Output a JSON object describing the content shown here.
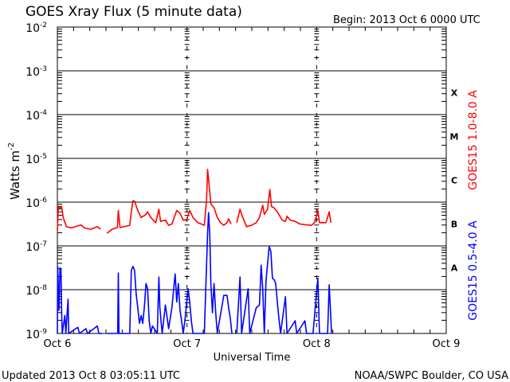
{
  "chart_data": {
    "type": "line",
    "title": "GOES Xray Flux (5 minute data)",
    "begin_label": "Begin:  2013 Oct 6 0000 UTC",
    "xlabel": "Universal Time",
    "ylabel": "Watts m",
    "ylabel_exp": "-2",
    "x_unit": "hours since 2013 Oct 6 0000 UTC",
    "xlim": [
      0,
      72
    ],
    "x_ticks": [
      {
        "h": 0,
        "label": "Oct 6"
      },
      {
        "h": 24,
        "label": "Oct 7"
      },
      {
        "h": 48,
        "label": "Oct 8"
      },
      {
        "h": 72,
        "label": "Oct 9"
      }
    ],
    "y_scale": "log",
    "ylim_exp": [
      -9,
      -2
    ],
    "y_ticks": [
      {
        "exp": -2,
        "base": "10",
        "sup": "-2"
      },
      {
        "exp": -3,
        "base": "10",
        "sup": "-3"
      },
      {
        "exp": -4,
        "base": "10",
        "sup": "-4"
      },
      {
        "exp": -5,
        "base": "10",
        "sup": "-5"
      },
      {
        "exp": -6,
        "base": "10",
        "sup": "-6"
      },
      {
        "exp": -7,
        "base": "10",
        "sup": "-7"
      },
      {
        "exp": -8,
        "base": "10",
        "sup": "-8"
      },
      {
        "exp": -9,
        "base": "10",
        "sup": "-9"
      }
    ],
    "flare_classes": [
      {
        "label": "X",
        "exp": -4
      },
      {
        "label": "M",
        "exp": -5
      },
      {
        "label": "C",
        "exp": -6
      },
      {
        "label": "B",
        "exp": -7
      },
      {
        "label": "A",
        "exp": -8
      }
    ],
    "series": [
      {
        "name": "GOES15 1.0-8.0 A",
        "color": "#ff0000",
        "points_hours_log10flux": [
          [
            0,
            -6.65
          ],
          [
            0.18,
            -6.1
          ],
          [
            0.48,
            -6.13
          ],
          [
            0.78,
            -6.1
          ],
          [
            1.08,
            -6.35
          ],
          [
            1.68,
            -6.56
          ],
          [
            2.58,
            -6.59
          ],
          [
            4.38,
            -6.52
          ],
          [
            4.98,
            -6.59
          ],
          [
            6.19,
            -6.62
          ],
          [
            7.39,
            -6.56
          ],
          [
            7.99,
            -6.62
          ],
          null,
          [
            9.19,
            -6.71
          ],
          [
            10.09,
            -6.62
          ],
          [
            11.11,
            -6.58
          ],
          [
            11.29,
            -6.19
          ],
          [
            11.59,
            -6.58
          ],
          [
            13.39,
            -6.53
          ],
          [
            13.69,
            -6.22
          ],
          [
            13.99,
            -5.97
          ],
          [
            14.29,
            -5.98
          ],
          [
            14.89,
            -6.19
          ],
          [
            15.5,
            -6.35
          ],
          [
            16.4,
            -6.28
          ],
          [
            16.7,
            -6.22
          ],
          [
            17.3,
            -6.35
          ],
          [
            18.2,
            -6.47
          ],
          [
            18.8,
            -6.16
          ],
          [
            19.1,
            -6.44
          ],
          [
            20.0,
            -6.41
          ],
          [
            20.6,
            -6.53
          ],
          [
            21.2,
            -6.5
          ],
          [
            22.1,
            -6.19
          ],
          [
            22.7,
            -6.25
          ],
          [
            23.3,
            -6.41
          ],
          [
            23.9,
            -6.41
          ],
          [
            24.5,
            -6.19
          ],
          [
            25.11,
            -6.35
          ],
          [
            26.01,
            -6.47
          ],
          [
            27.21,
            -6.53
          ],
          [
            27.63,
            -5.92
          ],
          [
            27.81,
            -5.25
          ],
          [
            28.11,
            -5.62
          ],
          [
            28.41,
            -6.04
          ],
          [
            29.01,
            -6.13
          ],
          [
            29.61,
            -6.35
          ],
          [
            30.21,
            -6.47
          ],
          [
            30.81,
            -6.53
          ],
          [
            31.41,
            -6.47
          ],
          [
            31.71,
            -6.38
          ],
          [
            32.13,
            -6.5
          ],
          null,
          [
            33.21,
            -6.47
          ],
          [
            33.81,
            -6.16
          ],
          [
            34.11,
            -6.28
          ],
          [
            35.02,
            -6.56
          ],
          [
            35.92,
            -6.53
          ],
          [
            36.82,
            -6.47
          ],
          [
            37.42,
            -6.35
          ],
          [
            38.02,
            -6.07
          ],
          [
            38.32,
            -6.28
          ],
          [
            38.92,
            -6.16
          ],
          [
            39.34,
            -5.71
          ],
          [
            39.64,
            -6.1
          ],
          [
            40.12,
            -6.13
          ],
          [
            40.72,
            -6.22
          ],
          [
            41.62,
            -6.41
          ],
          [
            42.22,
            -6.44
          ],
          [
            42.52,
            -6.32
          ],
          [
            43.12,
            -6.41
          ],
          [
            44.02,
            -6.44
          ],
          [
            44.92,
            -6.5
          ],
          [
            46.13,
            -6.52
          ],
          [
            47.03,
            -6.53
          ],
          [
            47.63,
            -6.47
          ],
          [
            48.23,
            -6.19
          ],
          [
            48.53,
            -6.47
          ],
          [
            49.13,
            -6.47
          ],
          [
            49.73,
            -6.47
          ],
          [
            50.33,
            -6.22
          ],
          [
            50.63,
            -6.47
          ]
        ]
      },
      {
        "name": "GOES15 0.5-4.0 A",
        "color": "#0000ff",
        "points_hours_log10flux": [
          [
            0,
            -9
          ],
          [
            0.06,
            -7.47
          ],
          [
            0.3,
            -8.47
          ],
          [
            0.48,
            -7.5
          ],
          [
            0.66,
            -7.56
          ],
          [
            0.78,
            -8.47
          ],
          [
            0.9,
            -9
          ],
          [
            1.38,
            -8.59
          ],
          [
            1.56,
            -9
          ],
          [
            1.98,
            -8.22
          ],
          [
            2.1,
            -9
          ],
          [
            3.78,
            -8.86
          ],
          [
            4.08,
            -9
          ],
          [
            5.29,
            -8.89
          ],
          [
            5.59,
            -9
          ],
          [
            7.39,
            -8.83
          ],
          [
            7.69,
            -9
          ],
          [
            8.29,
            -9
          ],
          null,
          [
            9.19,
            -9
          ],
          [
            11.17,
            -9
          ],
          [
            11.29,
            -7.62
          ],
          [
            11.41,
            -9
          ],
          [
            13.39,
            -9
          ],
          [
            13.69,
            -7.56
          ],
          [
            13.99,
            -7.47
          ],
          [
            14.29,
            -7.56
          ],
          [
            14.59,
            -8.1
          ],
          [
            14.89,
            -8.41
          ],
          [
            15.2,
            -8.77
          ],
          [
            15.5,
            -8.59
          ],
          [
            15.8,
            -8.77
          ],
          [
            16.1,
            -8.41
          ],
          [
            16.4,
            -7.86
          ],
          [
            16.7,
            -7.98
          ],
          [
            17.0,
            -8.71
          ],
          [
            17.3,
            -9
          ],
          [
            17.6,
            -8.83
          ],
          [
            18.5,
            -9
          ],
          [
            18.8,
            -7.71
          ],
          [
            18.98,
            -8.41
          ],
          [
            19.4,
            -9
          ],
          [
            20.0,
            -8.35
          ],
          [
            20.6,
            -8.89
          ],
          [
            21.2,
            -8.41
          ],
          [
            21.8,
            -7.64
          ],
          [
            22.1,
            -8.28
          ],
          [
            22.4,
            -7.86
          ],
          [
            22.7,
            -8.47
          ],
          [
            23.0,
            -8.71
          ],
          [
            23.3,
            -9
          ],
          [
            23.6,
            -8.71
          ],
          [
            23.9,
            -8.35
          ],
          [
            24.2,
            -7.98
          ],
          [
            24.5,
            -8.28
          ],
          [
            24.8,
            -8.71
          ],
          [
            25.11,
            -9
          ],
          [
            27.21,
            -9
          ],
          [
            27.81,
            -6.71
          ],
          [
            27.99,
            -6.24
          ],
          [
            28.23,
            -6.77
          ],
          [
            28.41,
            -7.86
          ],
          [
            28.71,
            -8.53
          ],
          [
            29.01,
            -7.86
          ],
          [
            29.31,
            -8.53
          ],
          [
            29.61,
            -9
          ],
          [
            30.81,
            -8.13
          ],
          [
            31.41,
            -8.13
          ],
          [
            31.71,
            -8.41
          ],
          [
            32.01,
            -8.65
          ],
          [
            32.31,
            -9
          ],
          null,
          [
            33.21,
            -9
          ],
          [
            33.81,
            -7.71
          ],
          [
            34.11,
            -9
          ],
          [
            35.32,
            -7.98
          ],
          [
            35.62,
            -9
          ],
          [
            36.82,
            -8.41
          ],
          [
            37.42,
            -8.35
          ],
          [
            37.72,
            -7.44
          ],
          [
            38.02,
            -7.98
          ],
          [
            38.32,
            -9
          ],
          [
            38.62,
            -7.8
          ],
          [
            39.22,
            -7.01
          ],
          [
            39.52,
            -7.13
          ],
          [
            39.82,
            -7.74
          ],
          [
            40.12,
            -7.77
          ],
          [
            40.42,
            -7.86
          ],
          [
            40.72,
            -8.28
          ],
          [
            41.02,
            -8.65
          ],
          [
            41.32,
            -9
          ],
          [
            42.22,
            -8.16
          ],
          [
            42.52,
            -9
          ],
          [
            44.02,
            -8.71
          ],
          [
            44.32,
            -9
          ],
          [
            45.83,
            -8.71
          ],
          [
            46.13,
            -9
          ],
          [
            47.33,
            -9
          ],
          [
            48.23,
            -7.74
          ],
          [
            48.53,
            -9
          ],
          [
            50.03,
            -9
          ],
          [
            50.33,
            -7.89
          ],
          [
            50.63,
            -8.65
          ],
          [
            50.75,
            -9
          ]
        ]
      }
    ],
    "grid": "horizontal lines at each decade; dashed vertical lines at day boundaries"
  },
  "footer": {
    "updated": "Updated 2013 Oct  8 03:05:11 UTC",
    "source": "NOAA/SWPC Boulder, CO USA"
  }
}
